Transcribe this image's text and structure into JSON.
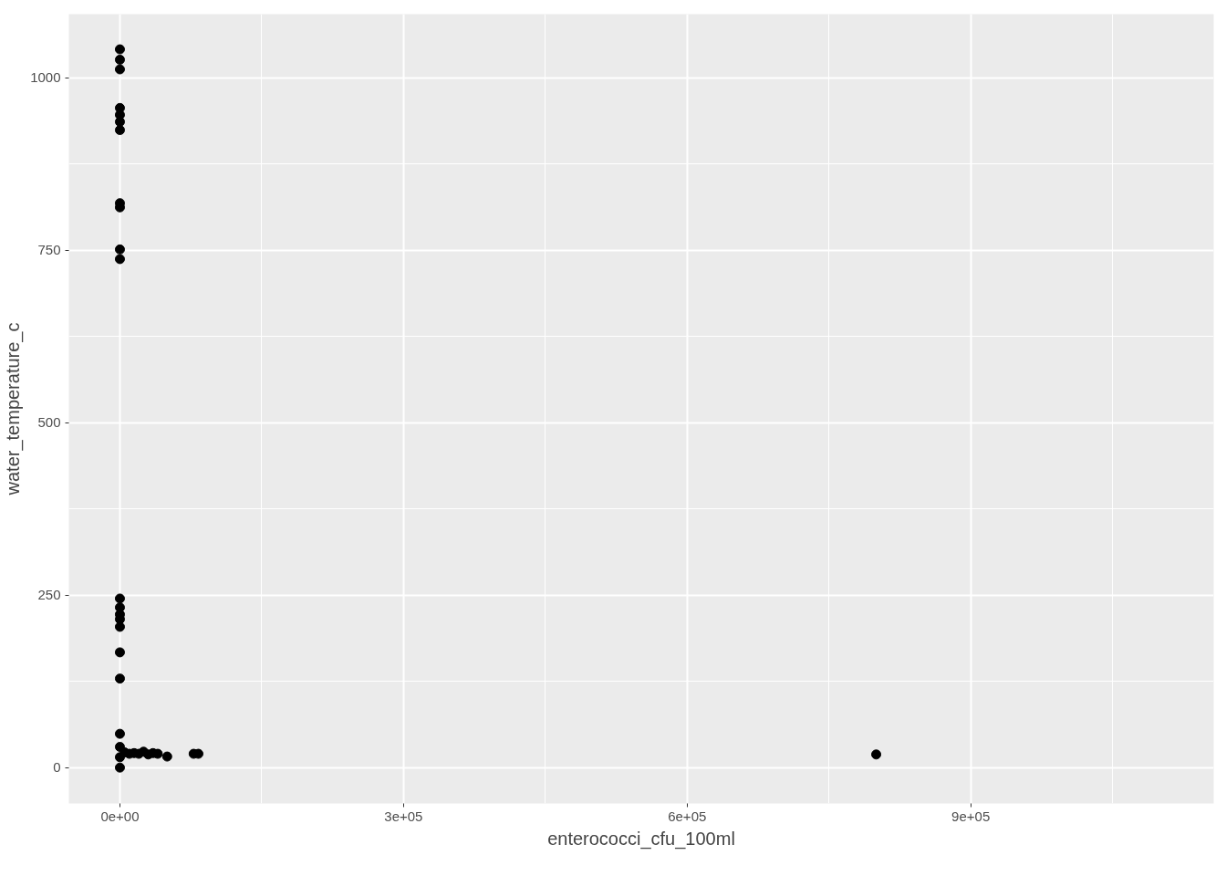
{
  "chart_data": {
    "type": "scatter",
    "xlabel": "enterococci_cfu_100ml",
    "ylabel": "water_temperature_c",
    "xlim": [
      -54000,
      1157000
    ],
    "ylim": [
      -52,
      1092
    ],
    "xticks": [
      {
        "value": 0,
        "label": "0e+00"
      },
      {
        "value": 300000,
        "label": "3e+05"
      },
      {
        "value": 600000,
        "label": "6e+05"
      },
      {
        "value": 900000,
        "label": "9e+05"
      }
    ],
    "yticks": [
      0,
      250,
      500,
      750,
      1000
    ],
    "grid": true,
    "marker": "circle",
    "series": [
      {
        "color": "#000000",
        "x": [
          0,
          0,
          0,
          0,
          0,
          0,
          0,
          0,
          0,
          0,
          0,
          0,
          0,
          0,
          0,
          0,
          0,
          0,
          0,
          0,
          0,
          0,
          5000,
          10000,
          15000,
          20000,
          25000,
          30000,
          35000,
          40000,
          50000,
          78000,
          83000,
          800000
        ],
        "values": [
          1041,
          1026,
          1012,
          956,
          946,
          936,
          924,
          818,
          812,
          751,
          737,
          245,
          232,
          222,
          215,
          204,
          167,
          129,
          49,
          30,
          15,
          0,
          22,
          20,
          21,
          20,
          23,
          19,
          21,
          20,
          16,
          20,
          20,
          19
        ]
      }
    ]
  }
}
